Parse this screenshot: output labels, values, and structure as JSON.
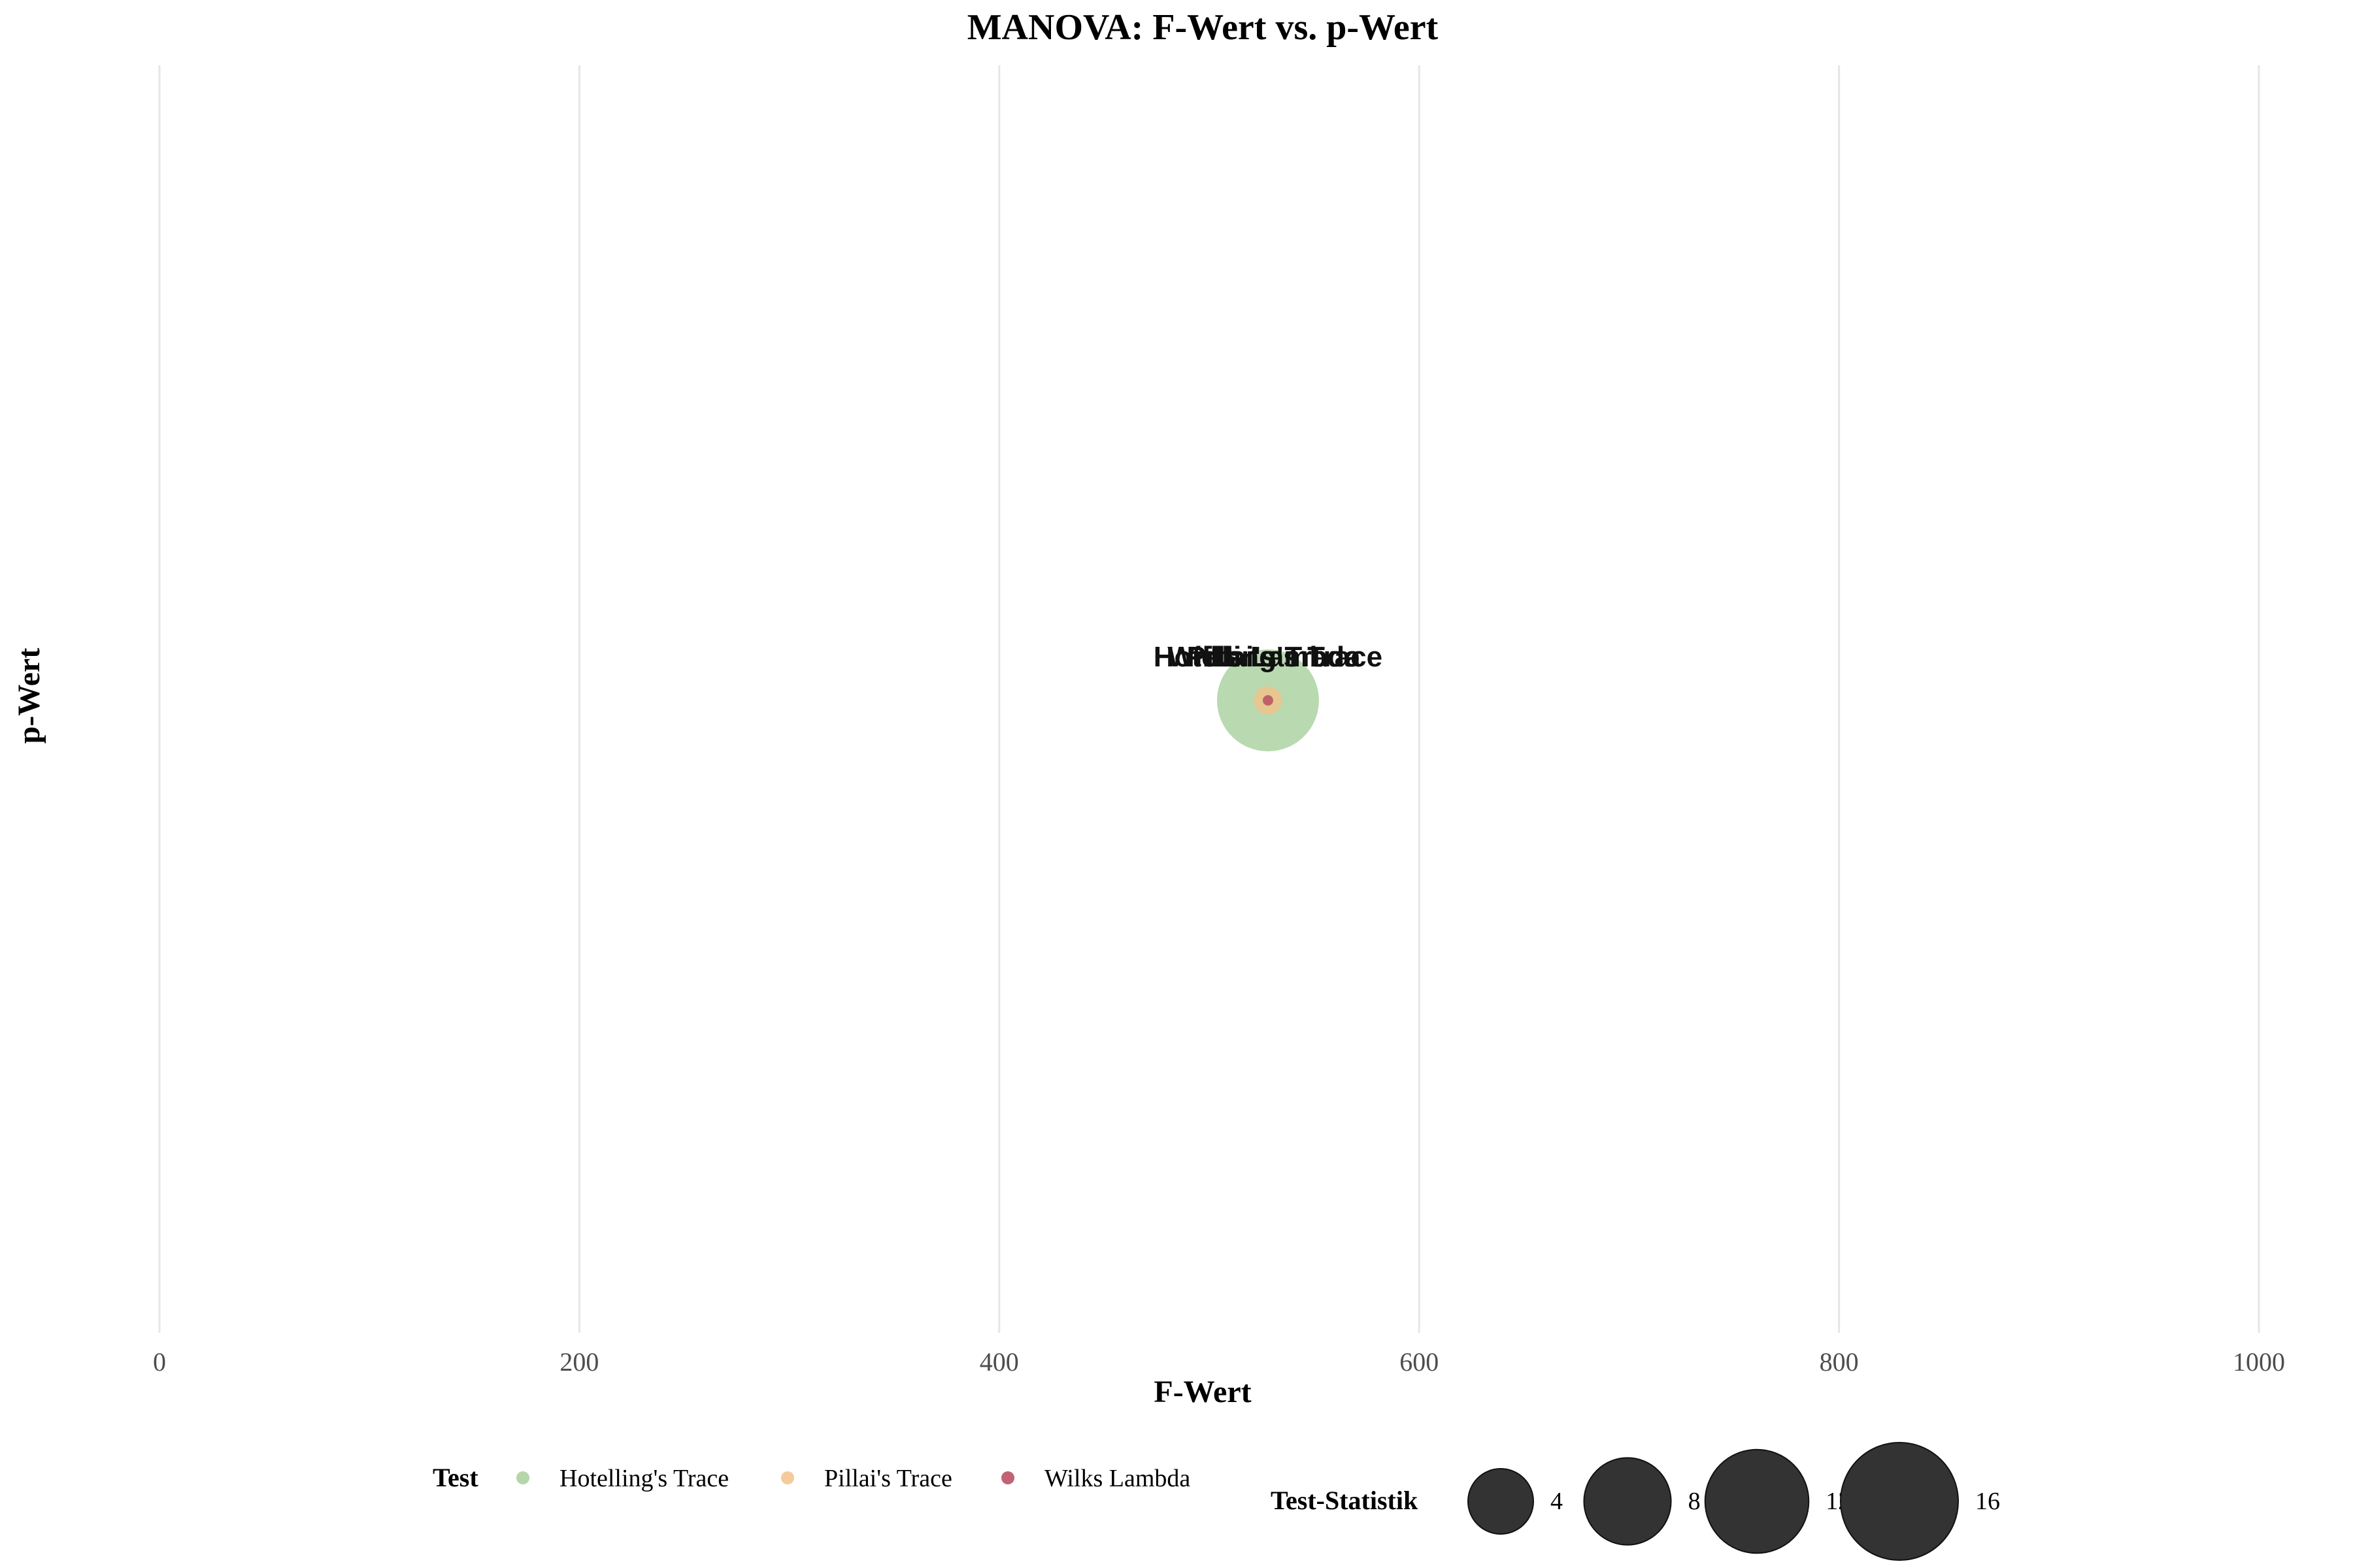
{
  "chart_data": {
    "type": "scatter",
    "title": "MANOVA: F-Wert vs. p-Wert",
    "xlabel": "F-Wert",
    "ylabel": "p-Wert",
    "xlim": [
      0,
      1000
    ],
    "xticks": [
      "0",
      "200",
      "400",
      "600",
      "800",
      "1000"
    ],
    "grid": "vertical only",
    "series": [
      {
        "name": "Hotelling's Trace",
        "x": 528,
        "y": 0,
        "size": 15.2,
        "color": "#a8cf9c"
      },
      {
        "name": "Pillai's Trace",
        "x": 528,
        "y": 0,
        "size": 1.17,
        "color": "#f2c288"
      },
      {
        "name": "Wilks Lambda",
        "x": 528,
        "y": 0,
        "size": 0.023,
        "color": "#b5485e"
      }
    ],
    "legend": {
      "placement": "bottom",
      "color_title": "Test",
      "size_title": "Test-Statistik",
      "size_breaks": [
        "4",
        "8",
        "12",
        "16"
      ]
    }
  }
}
